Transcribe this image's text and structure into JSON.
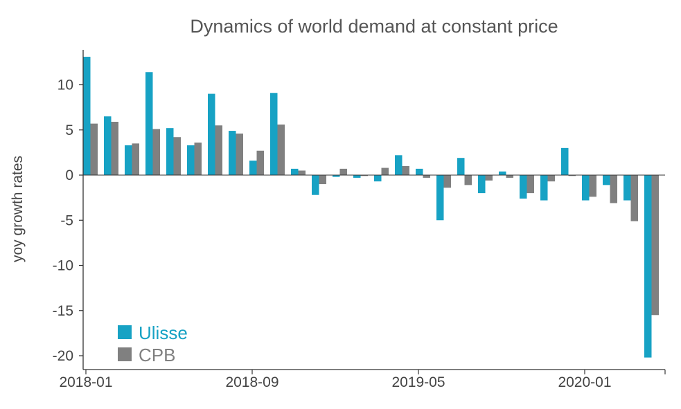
{
  "chart_data": {
    "type": "bar",
    "title": "Dynamics of world demand at constant price",
    "xlabel": "",
    "ylabel": "yoy growth rates",
    "ylim": [
      -21,
      14
    ],
    "yticks": [
      10,
      5,
      0,
      -5,
      -10,
      -15,
      -20
    ],
    "xtick_labels": [
      "2018-01",
      "2018-09",
      "2019-05",
      "2020-01"
    ],
    "categories": [
      "2018-01",
      "2018-02",
      "2018-03",
      "2018-04",
      "2018-05",
      "2018-06",
      "2018-07",
      "2018-08",
      "2018-09",
      "2018-10",
      "2018-11",
      "2018-12",
      "2019-01",
      "2019-02",
      "2019-03",
      "2019-04",
      "2019-05",
      "2019-06",
      "2019-07",
      "2019-08",
      "2019-09",
      "2019-10",
      "2019-11",
      "2019-12",
      "2020-01",
      "2020-02",
      "2020-03",
      "2020-04"
    ],
    "series": [
      {
        "name": "Ulisse",
        "color": "#17a2c4",
        "values": [
          13.1,
          6.5,
          3.3,
          11.4,
          5.2,
          3.3,
          9.0,
          4.9,
          1.6,
          9.1,
          0.7,
          -2.2,
          -0.2,
          -0.3,
          -0.7,
          2.2,
          0.7,
          -5.0,
          1.9,
          -2.0,
          0.4,
          -2.6,
          -2.8,
          3.0,
          -2.8,
          -1.1,
          -2.8,
          -20.2
        ]
      },
      {
        "name": "CPB",
        "color": "#808080",
        "values": [
          5.7,
          5.9,
          3.5,
          5.1,
          4.2,
          3.6,
          5.5,
          4.6,
          2.7,
          5.6,
          0.5,
          -1.0,
          0.7,
          -0.1,
          0.8,
          1.0,
          -0.3,
          -1.4,
          -1.1,
          -0.6,
          -0.3,
          -2.0,
          -0.7,
          -0.1,
          -2.4,
          -3.1,
          -5.1,
          -15.5
        ]
      }
    ],
    "legend": {
      "placement": "bottom-left"
    },
    "grid": false
  }
}
